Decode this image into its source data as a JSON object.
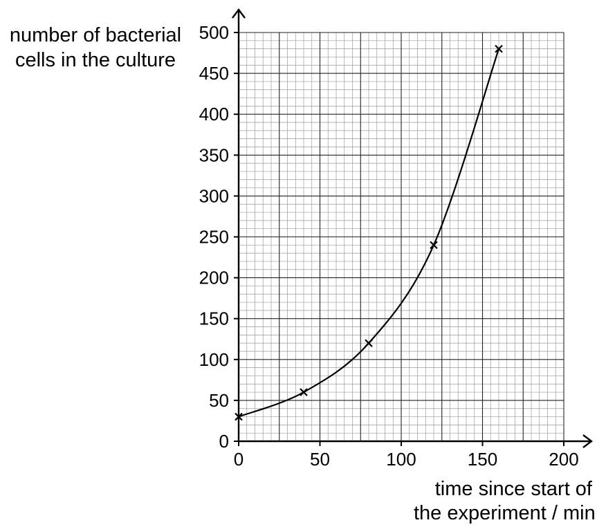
{
  "chart_data": {
    "type": "line",
    "xlabel_lines": [
      "time since start of",
      "the experiment / min"
    ],
    "ylabel_lines": [
      "number of bacterial",
      "cells in the culture"
    ],
    "xlim": [
      0,
      200
    ],
    "ylim": [
      0,
      500
    ],
    "x_ticks": [
      0,
      50,
      100,
      150,
      200
    ],
    "y_ticks": [
      0,
      50,
      100,
      150,
      200,
      250,
      300,
      350,
      400,
      450,
      500
    ],
    "grid": true,
    "points": [
      {
        "x": 0,
        "y": 30
      },
      {
        "x": 40,
        "y": 60
      },
      {
        "x": 80,
        "y": 120
      },
      {
        "x": 120,
        "y": 240
      },
      {
        "x": 160,
        "y": 480
      }
    ],
    "marker": "cross",
    "line_style": "smooth curve through points"
  }
}
